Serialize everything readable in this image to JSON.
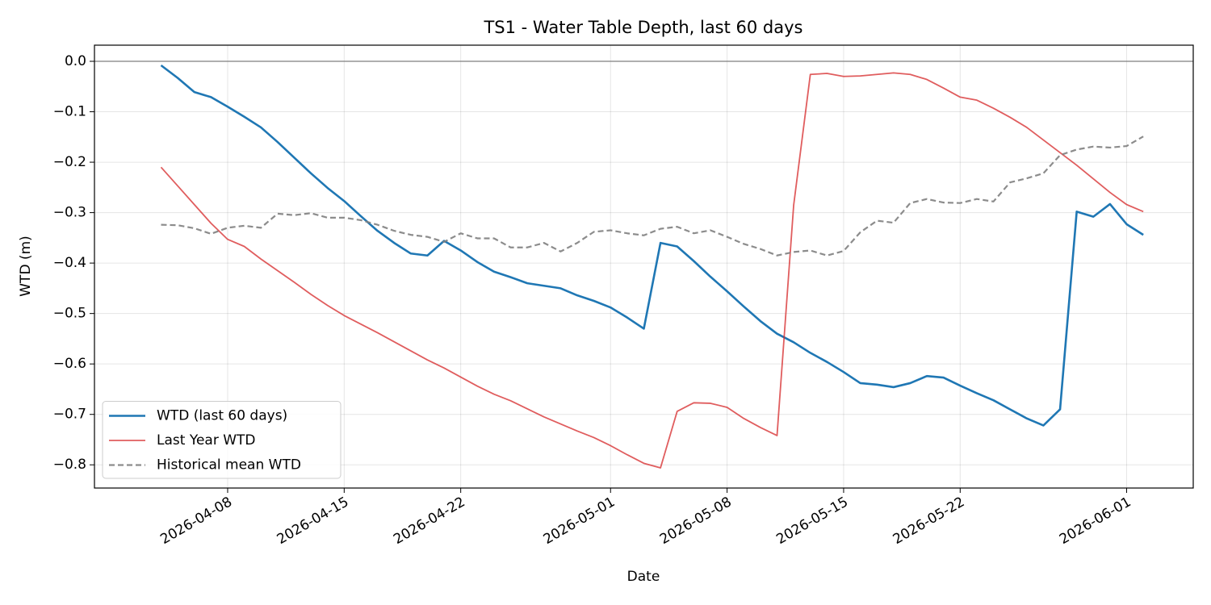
{
  "chart_data": {
    "type": "line",
    "title": "TS1 - Water Table Depth, last 60 days",
    "xlabel": "Date",
    "ylabel": "WTD (m)",
    "x": [
      "2026-04-04",
      "2026-04-05",
      "2026-04-06",
      "2026-04-07",
      "2026-04-08",
      "2026-04-09",
      "2026-04-10",
      "2026-04-11",
      "2026-04-12",
      "2026-04-13",
      "2026-04-14",
      "2026-04-15",
      "2026-04-16",
      "2026-04-17",
      "2026-04-18",
      "2026-04-19",
      "2026-04-20",
      "2026-04-21",
      "2026-04-22",
      "2026-04-23",
      "2026-04-24",
      "2026-04-25",
      "2026-04-26",
      "2026-04-27",
      "2026-04-28",
      "2026-04-29",
      "2026-04-30",
      "2026-05-01",
      "2026-05-02",
      "2026-05-03",
      "2026-05-04",
      "2026-05-05",
      "2026-05-06",
      "2026-05-07",
      "2026-05-08",
      "2026-05-09",
      "2026-05-10",
      "2026-05-11",
      "2026-05-12",
      "2026-05-13",
      "2026-05-14",
      "2026-05-15",
      "2026-05-16",
      "2026-05-17",
      "2026-05-18",
      "2026-05-19",
      "2026-05-20",
      "2026-05-21",
      "2026-05-22",
      "2026-05-23",
      "2026-05-24",
      "2026-05-25",
      "2026-05-26",
      "2026-05-27",
      "2026-05-28",
      "2026-05-29",
      "2026-05-30",
      "2026-05-31",
      "2026-06-01",
      "2026-06-02"
    ],
    "series": [
      {
        "name": "WTD (last 60 days)",
        "color": "#1f77b4",
        "width": 2.6,
        "dash": "none",
        "values": [
          -0.008,
          -0.033,
          -0.061,
          -0.071,
          -0.09,
          -0.11,
          -0.131,
          -0.16,
          -0.191,
          -0.222,
          -0.251,
          -0.277,
          -0.307,
          -0.336,
          -0.36,
          -0.381,
          -0.385,
          -0.356,
          -0.375,
          -0.398,
          -0.417,
          -0.428,
          -0.44,
          -0.445,
          -0.45,
          -0.464,
          -0.475,
          -0.488,
          -0.508,
          -0.53,
          -0.36,
          -0.367,
          -0.396,
          -0.427,
          -0.456,
          -0.486,
          -0.515,
          -0.54,
          -0.557,
          -0.578,
          -0.596,
          -0.616,
          -0.638,
          -0.641,
          -0.646,
          -0.638,
          -0.624,
          -0.627,
          -0.643,
          -0.658,
          -0.672,
          -0.69,
          -0.708,
          -0.722,
          -0.69,
          -0.298,
          -0.308,
          -0.283,
          -0.323,
          -0.344
        ]
      },
      {
        "name": "Last Year WTD",
        "color": "#d62728",
        "width": 1.8,
        "dash": "none",
        "opacity": 0.75,
        "values": [
          -0.21,
          -0.247,
          -0.284,
          -0.321,
          -0.353,
          -0.367,
          -0.392,
          -0.415,
          -0.438,
          -0.462,
          -0.484,
          -0.504,
          -0.521,
          -0.538,
          -0.556,
          -0.574,
          -0.592,
          -0.608,
          -0.626,
          -0.644,
          -0.66,
          -0.673,
          -0.689,
          -0.705,
          -0.719,
          -0.733,
          -0.746,
          -0.762,
          -0.78,
          -0.797,
          -0.806,
          -0.694,
          -0.677,
          -0.678,
          -0.686,
          -0.708,
          -0.726,
          -0.742,
          -0.285,
          -0.026,
          -0.024,
          -0.03,
          -0.029,
          -0.026,
          -0.023,
          -0.026,
          -0.036,
          -0.053,
          -0.071,
          -0.077,
          -0.093,
          -0.111,
          -0.131,
          -0.156,
          -0.181,
          -0.206,
          -0.233,
          -0.26,
          -0.284,
          -0.298
        ]
      },
      {
        "name": "Historical mean WTD",
        "color": "#7f7f7f",
        "width": 2.2,
        "dash": "7 4",
        "opacity": 0.9,
        "values": [
          -0.324,
          -0.325,
          -0.331,
          -0.342,
          -0.33,
          -0.326,
          -0.33,
          -0.302,
          -0.305,
          -0.301,
          -0.31,
          -0.31,
          -0.315,
          -0.324,
          -0.336,
          -0.344,
          -0.348,
          -0.358,
          -0.341,
          -0.351,
          -0.351,
          -0.369,
          -0.369,
          -0.36,
          -0.377,
          -0.36,
          -0.338,
          -0.335,
          -0.341,
          -0.345,
          -0.332,
          -0.328,
          -0.341,
          -0.335,
          -0.348,
          -0.362,
          -0.372,
          -0.385,
          -0.378,
          -0.375,
          -0.385,
          -0.376,
          -0.339,
          -0.316,
          -0.32,
          -0.281,
          -0.273,
          -0.28,
          -0.281,
          -0.273,
          -0.278,
          -0.24,
          -0.232,
          -0.222,
          -0.186,
          -0.175,
          -0.169,
          -0.171,
          -0.168,
          -0.149
        ]
      }
    ],
    "xlim": [
      "2026-03-31",
      "2026-06-05"
    ],
    "xticks": [
      "2026-04-08",
      "2026-04-15",
      "2026-04-22",
      "2026-05-01",
      "2026-05-08",
      "2026-05-15",
      "2026-05-22",
      "2026-06-01"
    ],
    "ylim": [
      -0.846,
      0.032
    ],
    "yticks": [
      {
        "value": 0,
        "label": "0.0"
      },
      {
        "value": -0.1,
        "label": "−0.1"
      },
      {
        "value": -0.2,
        "label": "−0.2"
      },
      {
        "value": -0.3,
        "label": "−0.3"
      },
      {
        "value": -0.4,
        "label": "−0.4"
      },
      {
        "value": -0.5,
        "label": "−0.5"
      },
      {
        "value": -0.6,
        "label": "−0.6"
      },
      {
        "value": -0.7,
        "label": "−0.7"
      },
      {
        "value": -0.8,
        "label": "−0.8"
      }
    ],
    "hline": 0,
    "grid": true,
    "legend": "lower left"
  }
}
